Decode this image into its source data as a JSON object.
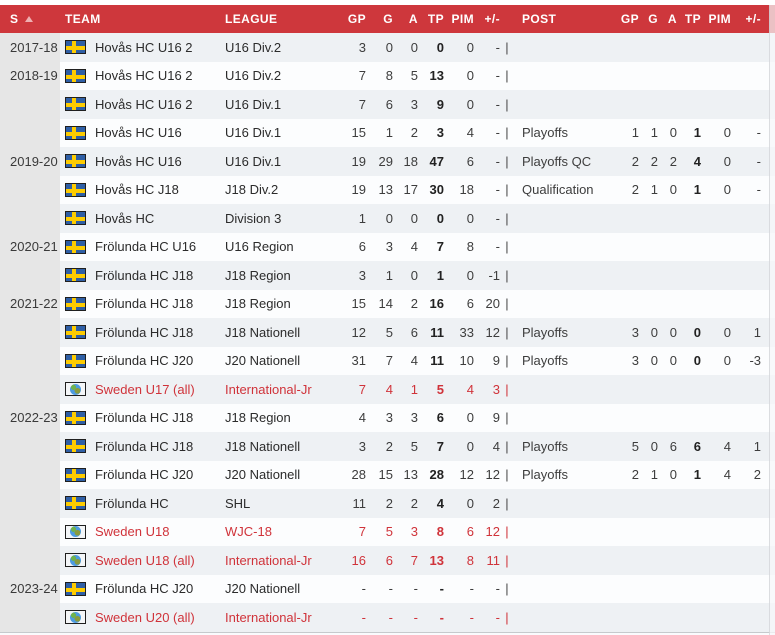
{
  "header": {
    "season": "S",
    "team": "TEAM",
    "league": "LEAGUE",
    "gp": "GP",
    "g": "G",
    "a": "A",
    "tp": "TP",
    "pim": "PIM",
    "pm": "+/-",
    "post": "POST",
    "gp2": "GP",
    "g2": "G",
    "a2": "A",
    "tp2": "TP",
    "pim2": "PIM",
    "pm2": "+/-"
  },
  "table": {
    "divider": "|",
    "rows": [
      {
        "season": "2017-18",
        "flag": "se",
        "team": "Hovås HC U16 2",
        "league": "U16 Div.2",
        "gp": "3",
        "g": "0",
        "a": "0",
        "tp": "0",
        "pim": "0",
        "pm": "-",
        "post": "",
        "pgp": "",
        "pg": "",
        "pa": "",
        "ptp": "",
        "ppim": "",
        "ppm": "",
        "red": false
      },
      {
        "season": "2018-19",
        "flag": "se",
        "team": "Hovås HC U16 2",
        "league": "U16 Div.2",
        "gp": "7",
        "g": "8",
        "a": "5",
        "tp": "13",
        "pim": "0",
        "pm": "-",
        "post": "",
        "pgp": "",
        "pg": "",
        "pa": "",
        "ptp": "",
        "ppim": "",
        "ppm": "",
        "red": false
      },
      {
        "season": "",
        "flag": "se",
        "team": "Hovås HC U16 2",
        "league": "U16 Div.1",
        "gp": "7",
        "g": "6",
        "a": "3",
        "tp": "9",
        "pim": "0",
        "pm": "-",
        "post": "",
        "pgp": "",
        "pg": "",
        "pa": "",
        "ptp": "",
        "ppim": "",
        "ppm": "",
        "red": false
      },
      {
        "season": "",
        "flag": "se",
        "team": "Hovås HC U16",
        "league": "U16 Div.1",
        "gp": "15",
        "g": "1",
        "a": "2",
        "tp": "3",
        "pim": "4",
        "pm": "-",
        "post": "Playoffs",
        "pgp": "1",
        "pg": "1",
        "pa": "0",
        "ptp": "1",
        "ppim": "0",
        "ppm": "-",
        "red": false
      },
      {
        "season": "2019-20",
        "flag": "se",
        "team": "Hovås HC U16",
        "league": "U16 Div.1",
        "gp": "19",
        "g": "29",
        "a": "18",
        "tp": "47",
        "pim": "6",
        "pm": "-",
        "post": "Playoffs QC",
        "pgp": "2",
        "pg": "2",
        "pa": "2",
        "ptp": "4",
        "ppim": "0",
        "ppm": "-",
        "red": false
      },
      {
        "season": "",
        "flag": "se",
        "team": "Hovås HC J18",
        "league": "J18 Div.2",
        "gp": "19",
        "g": "13",
        "a": "17",
        "tp": "30",
        "pim": "18",
        "pm": "-",
        "post": "Qualification",
        "pgp": "2",
        "pg": "1",
        "pa": "0",
        "ptp": "1",
        "ppim": "0",
        "ppm": "-",
        "red": false
      },
      {
        "season": "",
        "flag": "se",
        "team": "Hovås HC",
        "league": "Division 3",
        "gp": "1",
        "g": "0",
        "a": "0",
        "tp": "0",
        "pim": "0",
        "pm": "-",
        "post": "",
        "pgp": "",
        "pg": "",
        "pa": "",
        "ptp": "",
        "ppim": "",
        "ppm": "",
        "red": false
      },
      {
        "season": "2020-21",
        "flag": "se",
        "team": "Frölunda HC U16",
        "league": "U16 Region",
        "gp": "6",
        "g": "3",
        "a": "4",
        "tp": "7",
        "pim": "8",
        "pm": "-",
        "post": "",
        "pgp": "",
        "pg": "",
        "pa": "",
        "ptp": "",
        "ppim": "",
        "ppm": "",
        "red": false
      },
      {
        "season": "",
        "flag": "se",
        "team": "Frölunda HC J18",
        "league": "J18 Region",
        "gp": "3",
        "g": "1",
        "a": "0",
        "tp": "1",
        "pim": "0",
        "pm": "-1",
        "post": "",
        "pgp": "",
        "pg": "",
        "pa": "",
        "ptp": "",
        "ppim": "",
        "ppm": "",
        "red": false
      },
      {
        "season": "2021-22",
        "flag": "se",
        "team": "Frölunda HC J18",
        "league": "J18 Region",
        "gp": "15",
        "g": "14",
        "a": "2",
        "tp": "16",
        "pim": "6",
        "pm": "20",
        "post": "",
        "pgp": "",
        "pg": "",
        "pa": "",
        "ptp": "",
        "ppim": "",
        "ppm": "",
        "red": false
      },
      {
        "season": "",
        "flag": "se",
        "team": "Frölunda HC J18",
        "league": "J18 Nationell",
        "gp": "12",
        "g": "5",
        "a": "6",
        "tp": "11",
        "pim": "33",
        "pm": "12",
        "post": "Playoffs",
        "pgp": "3",
        "pg": "0",
        "pa": "0",
        "ptp": "0",
        "ppim": "0",
        "ppm": "1",
        "red": false
      },
      {
        "season": "",
        "flag": "se",
        "team": "Frölunda HC J20",
        "league": "J20 Nationell",
        "gp": "31",
        "g": "7",
        "a": "4",
        "tp": "11",
        "pim": "10",
        "pm": "9",
        "post": "Playoffs",
        "pgp": "3",
        "pg": "0",
        "pa": "0",
        "ptp": "0",
        "ppim": "0",
        "ppm": "-3",
        "red": false
      },
      {
        "season": "",
        "flag": "int",
        "team": "Sweden U17 (all)",
        "league": "International-Jr",
        "gp": "7",
        "g": "4",
        "a": "1",
        "tp": "5",
        "pim": "4",
        "pm": "3",
        "post": "",
        "pgp": "",
        "pg": "",
        "pa": "",
        "ptp": "",
        "ppim": "",
        "ppm": "",
        "red": true
      },
      {
        "season": "2022-23",
        "flag": "se",
        "team": "Frölunda HC J18",
        "league": "J18 Region",
        "gp": "4",
        "g": "3",
        "a": "3",
        "tp": "6",
        "pim": "0",
        "pm": "9",
        "post": "",
        "pgp": "",
        "pg": "",
        "pa": "",
        "ptp": "",
        "ppim": "",
        "ppm": "",
        "red": false
      },
      {
        "season": "",
        "flag": "se",
        "team": "Frölunda HC J18",
        "league": "J18 Nationell",
        "gp": "3",
        "g": "2",
        "a": "5",
        "tp": "7",
        "pim": "0",
        "pm": "4",
        "post": "Playoffs",
        "pgp": "5",
        "pg": "0",
        "pa": "6",
        "ptp": "6",
        "ppim": "4",
        "ppm": "1",
        "red": false
      },
      {
        "season": "",
        "flag": "se",
        "team": "Frölunda HC J20",
        "league": "J20 Nationell",
        "gp": "28",
        "g": "15",
        "a": "13",
        "tp": "28",
        "pim": "12",
        "pm": "12",
        "post": "Playoffs",
        "pgp": "2",
        "pg": "1",
        "pa": "0",
        "ptp": "1",
        "ppim": "4",
        "ppm": "2",
        "red": false
      },
      {
        "season": "",
        "flag": "se",
        "team": "Frölunda HC",
        "league": "SHL",
        "gp": "11",
        "g": "2",
        "a": "2",
        "tp": "4",
        "pim": "0",
        "pm": "2",
        "post": "",
        "pgp": "",
        "pg": "",
        "pa": "",
        "ptp": "",
        "ppim": "",
        "ppm": "",
        "red": false
      },
      {
        "season": "",
        "flag": "int",
        "team": "Sweden U18",
        "league": "WJC-18",
        "gp": "7",
        "g": "5",
        "a": "3",
        "tp": "8",
        "pim": "6",
        "pm": "12",
        "post": "",
        "pgp": "",
        "pg": "",
        "pa": "",
        "ptp": "",
        "ppim": "",
        "ppm": "",
        "red": true
      },
      {
        "season": "",
        "flag": "int",
        "team": "Sweden U18 (all)",
        "league": "International-Jr",
        "gp": "16",
        "g": "6",
        "a": "7",
        "tp": "13",
        "pim": "8",
        "pm": "11",
        "post": "",
        "pgp": "",
        "pg": "",
        "pa": "",
        "ptp": "",
        "ppim": "",
        "ppm": "",
        "red": true
      },
      {
        "season": "2023-24",
        "flag": "se",
        "team": "Frölunda HC J20",
        "league": "J20 Nationell",
        "gp": "-",
        "g": "-",
        "a": "-",
        "tp": "-",
        "pim": "-",
        "pm": "-",
        "post": "",
        "pgp": "",
        "pg": "",
        "pa": "",
        "ptp": "",
        "ppim": "",
        "ppm": "",
        "red": false
      },
      {
        "season": "",
        "flag": "int",
        "team": "Sweden U20 (all)",
        "league": "International-Jr",
        "gp": "-",
        "g": "-",
        "a": "-",
        "tp": "-",
        "pim": "-",
        "pm": "-",
        "post": "",
        "pgp": "",
        "pg": "",
        "pa": "",
        "ptp": "",
        "ppim": "",
        "ppm": "",
        "red": true
      }
    ]
  },
  "colors": {
    "header_bg": "#ce373c",
    "red_row_text": "#d0333a",
    "row_tint": "#eef1f4",
    "season_column": "#e6e6e6",
    "flag_blue": "#2f5fa5",
    "flag_yellow": "#fecc00"
  }
}
